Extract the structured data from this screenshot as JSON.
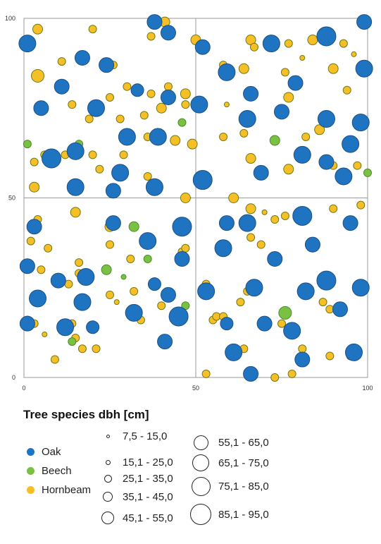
{
  "chart_data": {
    "type": "scatter",
    "title": "",
    "xlabel": "",
    "ylabel": "",
    "xlim": [
      0,
      100
    ],
    "ylim": [
      0,
      100
    ],
    "xticks": [
      "0",
      "50",
      "100"
    ],
    "yticks": [
      "0",
      "50",
      "100"
    ],
    "grid": "midlines at 50",
    "legend_title": "Tree species  dbh [cm]",
    "species": [
      {
        "name": "Oak",
        "color": "#1f74c2"
      },
      {
        "name": "Beech",
        "color": "#7ac143"
      },
      {
        "name": "Hornbeam",
        "color": "#f6bf26"
      }
    ],
    "size_classes": [
      "7,5 - 15,0",
      "15,1 - 25,0",
      "25,1 - 35,0",
      "35,1 - 45,0",
      "45,1 - 55,0",
      "55,1 - 65,0",
      "65,1 - 75,0",
      "75,1 - 85,0",
      "85,1 - 95,0"
    ],
    "trees": [
      {
        "species": "Oak",
        "x": 1,
        "y": 93,
        "size": 7
      },
      {
        "species": "Oak",
        "x": 17,
        "y": 89,
        "size": 6
      },
      {
        "species": "Oak",
        "x": 24,
        "y": 87,
        "size": 6
      },
      {
        "species": "Oak",
        "x": 11,
        "y": 81,
        "size": 6
      },
      {
        "species": "Oak",
        "x": 42,
        "y": 96,
        "size": 6
      },
      {
        "species": "Oak",
        "x": 38,
        "y": 99,
        "size": 6
      },
      {
        "species": "Oak",
        "x": 52,
        "y": 92,
        "size": 6
      },
      {
        "species": "Oak",
        "x": 72,
        "y": 93,
        "size": 7
      },
      {
        "species": "Oak",
        "x": 88,
        "y": 95,
        "size": 8
      },
      {
        "species": "Oak",
        "x": 99,
        "y": 99,
        "size": 6
      },
      {
        "species": "Oak",
        "x": 99,
        "y": 86,
        "size": 7
      },
      {
        "species": "Oak",
        "x": 59,
        "y": 85,
        "size": 7
      },
      {
        "species": "Oak",
        "x": 79,
        "y": 82,
        "size": 6
      },
      {
        "species": "Oak",
        "x": 33,
        "y": 80,
        "size": 5
      },
      {
        "species": "Oak",
        "x": 5,
        "y": 75,
        "size": 6
      },
      {
        "species": "Oak",
        "x": 21,
        "y": 75,
        "size": 7
      },
      {
        "species": "Oak",
        "x": 42,
        "y": 78,
        "size": 6
      },
      {
        "species": "Oak",
        "x": 51,
        "y": 76,
        "size": 7
      },
      {
        "species": "Oak",
        "x": 66,
        "y": 79,
        "size": 6
      },
      {
        "species": "Oak",
        "x": 75,
        "y": 74,
        "size": 6
      },
      {
        "species": "Oak",
        "x": 65,
        "y": 72,
        "size": 7
      },
      {
        "species": "Oak",
        "x": 88,
        "y": 72,
        "size": 7
      },
      {
        "species": "Oak",
        "x": 98,
        "y": 71,
        "size": 7
      },
      {
        "species": "Oak",
        "x": 30,
        "y": 67,
        "size": 7
      },
      {
        "species": "Oak",
        "x": 39,
        "y": 67,
        "size": 7
      },
      {
        "species": "Oak",
        "x": 15,
        "y": 63,
        "size": 7
      },
      {
        "species": "Oak",
        "x": 8,
        "y": 61,
        "size": 8
      },
      {
        "species": "Oak",
        "x": 81,
        "y": 62,
        "size": 7
      },
      {
        "species": "Oak",
        "x": 95,
        "y": 65,
        "size": 7
      },
      {
        "species": "Oak",
        "x": 88,
        "y": 60,
        "size": 6
      },
      {
        "species": "Oak",
        "x": 28,
        "y": 57,
        "size": 7
      },
      {
        "species": "Oak",
        "x": 69,
        "y": 57,
        "size": 6
      },
      {
        "species": "Oak",
        "x": 93,
        "y": 56,
        "size": 7
      },
      {
        "species": "Oak",
        "x": 15,
        "y": 53,
        "size": 7
      },
      {
        "species": "Oak",
        "x": 38,
        "y": 53,
        "size": 7
      },
      {
        "species": "Oak",
        "x": 52,
        "y": 55,
        "size": 8
      },
      {
        "species": "Oak",
        "x": 26,
        "y": 52,
        "size": 6
      },
      {
        "species": "Oak",
        "x": 3,
        "y": 42,
        "size": 6
      },
      {
        "species": "Oak",
        "x": 26,
        "y": 43,
        "size": 6
      },
      {
        "species": "Oak",
        "x": 46,
        "y": 42,
        "size": 8
      },
      {
        "species": "Oak",
        "x": 59,
        "y": 43,
        "size": 6
      },
      {
        "species": "Oak",
        "x": 65,
        "y": 43,
        "size": 7
      },
      {
        "species": "Oak",
        "x": 81,
        "y": 45,
        "size": 8
      },
      {
        "species": "Oak",
        "x": 95,
        "y": 43,
        "size": 6
      },
      {
        "species": "Oak",
        "x": 36,
        "y": 38,
        "size": 7
      },
      {
        "species": "Oak",
        "x": 84,
        "y": 37,
        "size": 6
      },
      {
        "species": "Oak",
        "x": 58,
        "y": 36,
        "size": 7
      },
      {
        "species": "Oak",
        "x": 1,
        "y": 31,
        "size": 6
      },
      {
        "species": "Oak",
        "x": 46,
        "y": 33,
        "size": 6
      },
      {
        "species": "Oak",
        "x": 73,
        "y": 33,
        "size": 6
      },
      {
        "species": "Oak",
        "x": 10,
        "y": 27,
        "size": 6
      },
      {
        "species": "Oak",
        "x": 18,
        "y": 28,
        "size": 7
      },
      {
        "species": "Oak",
        "x": 38,
        "y": 26,
        "size": 5
      },
      {
        "species": "Oak",
        "x": 4,
        "y": 22,
        "size": 7
      },
      {
        "species": "Oak",
        "x": 17,
        "y": 21,
        "size": 7
      },
      {
        "species": "Oak",
        "x": 42,
        "y": 23,
        "size": 6
      },
      {
        "species": "Oak",
        "x": 53,
        "y": 24,
        "size": 7
      },
      {
        "species": "Oak",
        "x": 67,
        "y": 25,
        "size": 7
      },
      {
        "species": "Oak",
        "x": 82,
        "y": 24,
        "size": 7
      },
      {
        "species": "Oak",
        "x": 88,
        "y": 27,
        "size": 8
      },
      {
        "species": "Oak",
        "x": 98,
        "y": 25,
        "size": 7
      },
      {
        "species": "Oak",
        "x": 32,
        "y": 18,
        "size": 7
      },
      {
        "species": "Oak",
        "x": 45,
        "y": 17,
        "size": 8
      },
      {
        "species": "Oak",
        "x": 92,
        "y": 19,
        "size": 6
      },
      {
        "species": "Oak",
        "x": 1,
        "y": 15,
        "size": 6
      },
      {
        "species": "Oak",
        "x": 12,
        "y": 14,
        "size": 7
      },
      {
        "species": "Oak",
        "x": 20,
        "y": 14,
        "size": 5
      },
      {
        "species": "Oak",
        "x": 59,
        "y": 15,
        "size": 5
      },
      {
        "species": "Oak",
        "x": 70,
        "y": 15,
        "size": 6
      },
      {
        "species": "Oak",
        "x": 78,
        "y": 13,
        "size": 7
      },
      {
        "species": "Oak",
        "x": 41,
        "y": 10,
        "size": 6
      },
      {
        "species": "Oak",
        "x": 61,
        "y": 7,
        "size": 7
      },
      {
        "species": "Oak",
        "x": 81,
        "y": 5,
        "size": 6
      },
      {
        "species": "Oak",
        "x": 96,
        "y": 7,
        "size": 7
      },
      {
        "species": "Oak",
        "x": 66,
        "y": 1,
        "size": 6
      },
      {
        "species": "Beech",
        "x": 1,
        "y": 65,
        "size": 3
      },
      {
        "species": "Beech",
        "x": 46,
        "y": 71,
        "size": 3
      },
      {
        "species": "Beech",
        "x": 73,
        "y": 66,
        "size": 4
      },
      {
        "species": "Beech",
        "x": 32,
        "y": 42,
        "size": 4
      },
      {
        "species": "Beech",
        "x": 24,
        "y": 30,
        "size": 4
      },
      {
        "species": "Beech",
        "x": 29,
        "y": 28,
        "size": 2
      },
      {
        "species": "Beech",
        "x": 36,
        "y": 33,
        "size": 3
      },
      {
        "species": "Beech",
        "x": 47,
        "y": 20,
        "size": 3
      },
      {
        "species": "Beech",
        "x": 76,
        "y": 18,
        "size": 5
      },
      {
        "species": "Beech",
        "x": 100,
        "y": 57,
        "size": 3
      },
      {
        "species": "Beech",
        "x": 14,
        "y": 10,
        "size": 3
      },
      {
        "species": "Beech",
        "x": 16,
        "y": 65,
        "size": 3
      },
      {
        "species": "Hornbeam",
        "x": 4,
        "y": 97,
        "size": 4
      },
      {
        "species": "Hornbeam",
        "x": 20,
        "y": 97,
        "size": 3
      },
      {
        "species": "Hornbeam",
        "x": 41,
        "y": 99,
        "size": 4
      },
      {
        "species": "Hornbeam",
        "x": 37,
        "y": 95,
        "size": 3
      },
      {
        "species": "Hornbeam",
        "x": 50,
        "y": 94,
        "size": 4
      },
      {
        "species": "Hornbeam",
        "x": 66,
        "y": 94,
        "size": 4
      },
      {
        "species": "Hornbeam",
        "x": 67,
        "y": 92,
        "size": 3
      },
      {
        "species": "Hornbeam",
        "x": 77,
        "y": 93,
        "size": 3
      },
      {
        "species": "Hornbeam",
        "x": 84,
        "y": 94,
        "size": 4
      },
      {
        "species": "Hornbeam",
        "x": 93,
        "y": 93,
        "size": 3
      },
      {
        "species": "Hornbeam",
        "x": 4,
        "y": 84,
        "size": 5
      },
      {
        "species": "Hornbeam",
        "x": 11,
        "y": 88,
        "size": 3
      },
      {
        "species": "Hornbeam",
        "x": 26,
        "y": 87,
        "size": 3
      },
      {
        "species": "Hornbeam",
        "x": 30,
        "y": 81,
        "size": 3
      },
      {
        "species": "Hornbeam",
        "x": 58,
        "y": 87,
        "size": 3
      },
      {
        "species": "Hornbeam",
        "x": 64,
        "y": 86,
        "size": 4
      },
      {
        "species": "Hornbeam",
        "x": 81,
        "y": 89,
        "size": 2
      },
      {
        "species": "Hornbeam",
        "x": 90,
        "y": 86,
        "size": 4
      },
      {
        "species": "Hornbeam",
        "x": 96,
        "y": 90,
        "size": 2
      },
      {
        "species": "Hornbeam",
        "x": 76,
        "y": 85,
        "size": 3
      },
      {
        "species": "Hornbeam",
        "x": 42,
        "y": 81,
        "size": 3
      },
      {
        "species": "Hornbeam",
        "x": 37,
        "y": 79,
        "size": 3
      },
      {
        "species": "Hornbeam",
        "x": 47,
        "y": 79,
        "size": 4
      },
      {
        "species": "Hornbeam",
        "x": 25,
        "y": 78,
        "size": 3
      },
      {
        "species": "Hornbeam",
        "x": 14,
        "y": 76,
        "size": 3
      },
      {
        "species": "Hornbeam",
        "x": 19,
        "y": 72,
        "size": 3
      },
      {
        "species": "Hornbeam",
        "x": 28,
        "y": 72,
        "size": 3
      },
      {
        "species": "Hornbeam",
        "x": 35,
        "y": 73,
        "size": 3
      },
      {
        "species": "Hornbeam",
        "x": 40,
        "y": 75,
        "size": 4
      },
      {
        "species": "Hornbeam",
        "x": 47,
        "y": 76,
        "size": 3
      },
      {
        "species": "Hornbeam",
        "x": 59,
        "y": 76,
        "size": 2
      },
      {
        "species": "Hornbeam",
        "x": 77,
        "y": 78,
        "size": 4
      },
      {
        "species": "Hornbeam",
        "x": 94,
        "y": 80,
        "size": 3
      },
      {
        "species": "Hornbeam",
        "x": 3,
        "y": 60,
        "size": 3
      },
      {
        "species": "Hornbeam",
        "x": 6,
        "y": 62,
        "size": 3
      },
      {
        "species": "Hornbeam",
        "x": 12,
        "y": 62,
        "size": 3
      },
      {
        "species": "Hornbeam",
        "x": 20,
        "y": 62,
        "size": 3
      },
      {
        "species": "Hornbeam",
        "x": 29,
        "y": 62,
        "size": 3
      },
      {
        "species": "Hornbeam",
        "x": 36,
        "y": 67,
        "size": 3
      },
      {
        "species": "Hornbeam",
        "x": 44,
        "y": 66,
        "size": 4
      },
      {
        "species": "Hornbeam",
        "x": 49,
        "y": 65,
        "size": 4
      },
      {
        "species": "Hornbeam",
        "x": 58,
        "y": 67,
        "size": 3
      },
      {
        "species": "Hornbeam",
        "x": 64,
        "y": 68,
        "size": 3
      },
      {
        "species": "Hornbeam",
        "x": 82,
        "y": 67,
        "size": 3
      },
      {
        "species": "Hornbeam",
        "x": 86,
        "y": 69,
        "size": 4
      },
      {
        "species": "Hornbeam",
        "x": 66,
        "y": 61,
        "size": 4
      },
      {
        "species": "Hornbeam",
        "x": 77,
        "y": 58,
        "size": 4
      },
      {
        "species": "Hornbeam",
        "x": 90,
        "y": 59,
        "size": 3
      },
      {
        "species": "Hornbeam",
        "x": 97,
        "y": 59,
        "size": 3
      },
      {
        "species": "Hornbeam",
        "x": 3,
        "y": 53,
        "size": 4
      },
      {
        "species": "Hornbeam",
        "x": 22,
        "y": 58,
        "size": 3
      },
      {
        "species": "Hornbeam",
        "x": 36,
        "y": 56,
        "size": 3
      },
      {
        "species": "Hornbeam",
        "x": 47,
        "y": 50,
        "size": 4
      },
      {
        "species": "Hornbeam",
        "x": 61,
        "y": 50,
        "size": 4
      },
      {
        "species": "Hornbeam",
        "x": 66,
        "y": 47,
        "size": 4
      },
      {
        "species": "Hornbeam",
        "x": 70,
        "y": 46,
        "size": 2
      },
      {
        "species": "Hornbeam",
        "x": 73,
        "y": 44,
        "size": 3
      },
      {
        "species": "Hornbeam",
        "x": 76,
        "y": 45,
        "size": 3
      },
      {
        "species": "Hornbeam",
        "x": 81,
        "y": 46,
        "size": 3
      },
      {
        "species": "Hornbeam",
        "x": 90,
        "y": 47,
        "size": 3
      },
      {
        "species": "Hornbeam",
        "x": 98,
        "y": 48,
        "size": 3
      },
      {
        "species": "Hornbeam",
        "x": 15,
        "y": 46,
        "size": 4
      },
      {
        "species": "Hornbeam",
        "x": 25,
        "y": 42,
        "size": 4
      },
      {
        "species": "Hornbeam",
        "x": 4,
        "y": 44,
        "size": 3
      },
      {
        "species": "Hornbeam",
        "x": 2,
        "y": 38,
        "size": 3
      },
      {
        "species": "Hornbeam",
        "x": 7,
        "y": 36,
        "size": 3
      },
      {
        "species": "Hornbeam",
        "x": 16,
        "y": 32,
        "size": 3
      },
      {
        "species": "Hornbeam",
        "x": 25,
        "y": 37,
        "size": 3
      },
      {
        "species": "Hornbeam",
        "x": 31,
        "y": 33,
        "size": 3
      },
      {
        "species": "Hornbeam",
        "x": 46,
        "y": 35,
        "size": 3
      },
      {
        "species": "Hornbeam",
        "x": 47,
        "y": 36,
        "size": 3
      },
      {
        "species": "Hornbeam",
        "x": 66,
        "y": 39,
        "size": 3
      },
      {
        "species": "Hornbeam",
        "x": 69,
        "y": 37,
        "size": 3
      },
      {
        "species": "Hornbeam",
        "x": 84,
        "y": 36,
        "size": 3
      },
      {
        "species": "Hornbeam",
        "x": 5,
        "y": 30,
        "size": 3
      },
      {
        "species": "Hornbeam",
        "x": 13,
        "y": 26,
        "size": 3
      },
      {
        "species": "Hornbeam",
        "x": 16,
        "y": 29,
        "size": 3
      },
      {
        "species": "Hornbeam",
        "x": 25,
        "y": 23,
        "size": 3
      },
      {
        "species": "Hornbeam",
        "x": 27,
        "y": 21,
        "size": 2
      },
      {
        "species": "Hornbeam",
        "x": 32,
        "y": 24,
        "size": 3
      },
      {
        "species": "Hornbeam",
        "x": 40,
        "y": 20,
        "size": 3
      },
      {
        "species": "Hornbeam",
        "x": 53,
        "y": 26,
        "size": 3
      },
      {
        "species": "Hornbeam",
        "x": 63,
        "y": 21,
        "size": 3
      },
      {
        "species": "Hornbeam",
        "x": 65,
        "y": 24,
        "size": 3
      },
      {
        "species": "Hornbeam",
        "x": 87,
        "y": 21,
        "size": 3
      },
      {
        "species": "Hornbeam",
        "x": 89,
        "y": 19,
        "size": 3
      },
      {
        "species": "Hornbeam",
        "x": 1,
        "y": 16,
        "size": 3
      },
      {
        "species": "Hornbeam",
        "x": 3,
        "y": 15,
        "size": 3
      },
      {
        "species": "Hornbeam",
        "x": 14,
        "y": 15,
        "size": 3
      },
      {
        "species": "Hornbeam",
        "x": 34,
        "y": 16,
        "size": 3
      },
      {
        "species": "Hornbeam",
        "x": 55,
        "y": 16,
        "size": 3
      },
      {
        "species": "Hornbeam",
        "x": 56,
        "y": 17,
        "size": 3
      },
      {
        "species": "Hornbeam",
        "x": 58,
        "y": 17,
        "size": 3
      },
      {
        "species": "Hornbeam",
        "x": 75,
        "y": 15,
        "size": 3
      },
      {
        "species": "Hornbeam",
        "x": 6,
        "y": 12,
        "size": 2
      },
      {
        "species": "Hornbeam",
        "x": 15,
        "y": 11,
        "size": 3
      },
      {
        "species": "Hornbeam",
        "x": 17,
        "y": 8,
        "size": 3
      },
      {
        "species": "Hornbeam",
        "x": 21,
        "y": 8,
        "size": 3
      },
      {
        "species": "Hornbeam",
        "x": 64,
        "y": 8,
        "size": 3
      },
      {
        "species": "Hornbeam",
        "x": 81,
        "y": 8,
        "size": 3
      },
      {
        "species": "Hornbeam",
        "x": 89,
        "y": 6,
        "size": 3
      },
      {
        "species": "Hornbeam",
        "x": 95,
        "y": 6,
        "size": 3
      },
      {
        "species": "Hornbeam",
        "x": 9,
        "y": 5,
        "size": 3
      },
      {
        "species": "Hornbeam",
        "x": 53,
        "y": 1,
        "size": 3
      },
      {
        "species": "Hornbeam",
        "x": 73,
        "y": 0,
        "size": 3
      },
      {
        "species": "Hornbeam",
        "x": 78,
        "y": 1,
        "size": 3
      }
    ]
  }
}
